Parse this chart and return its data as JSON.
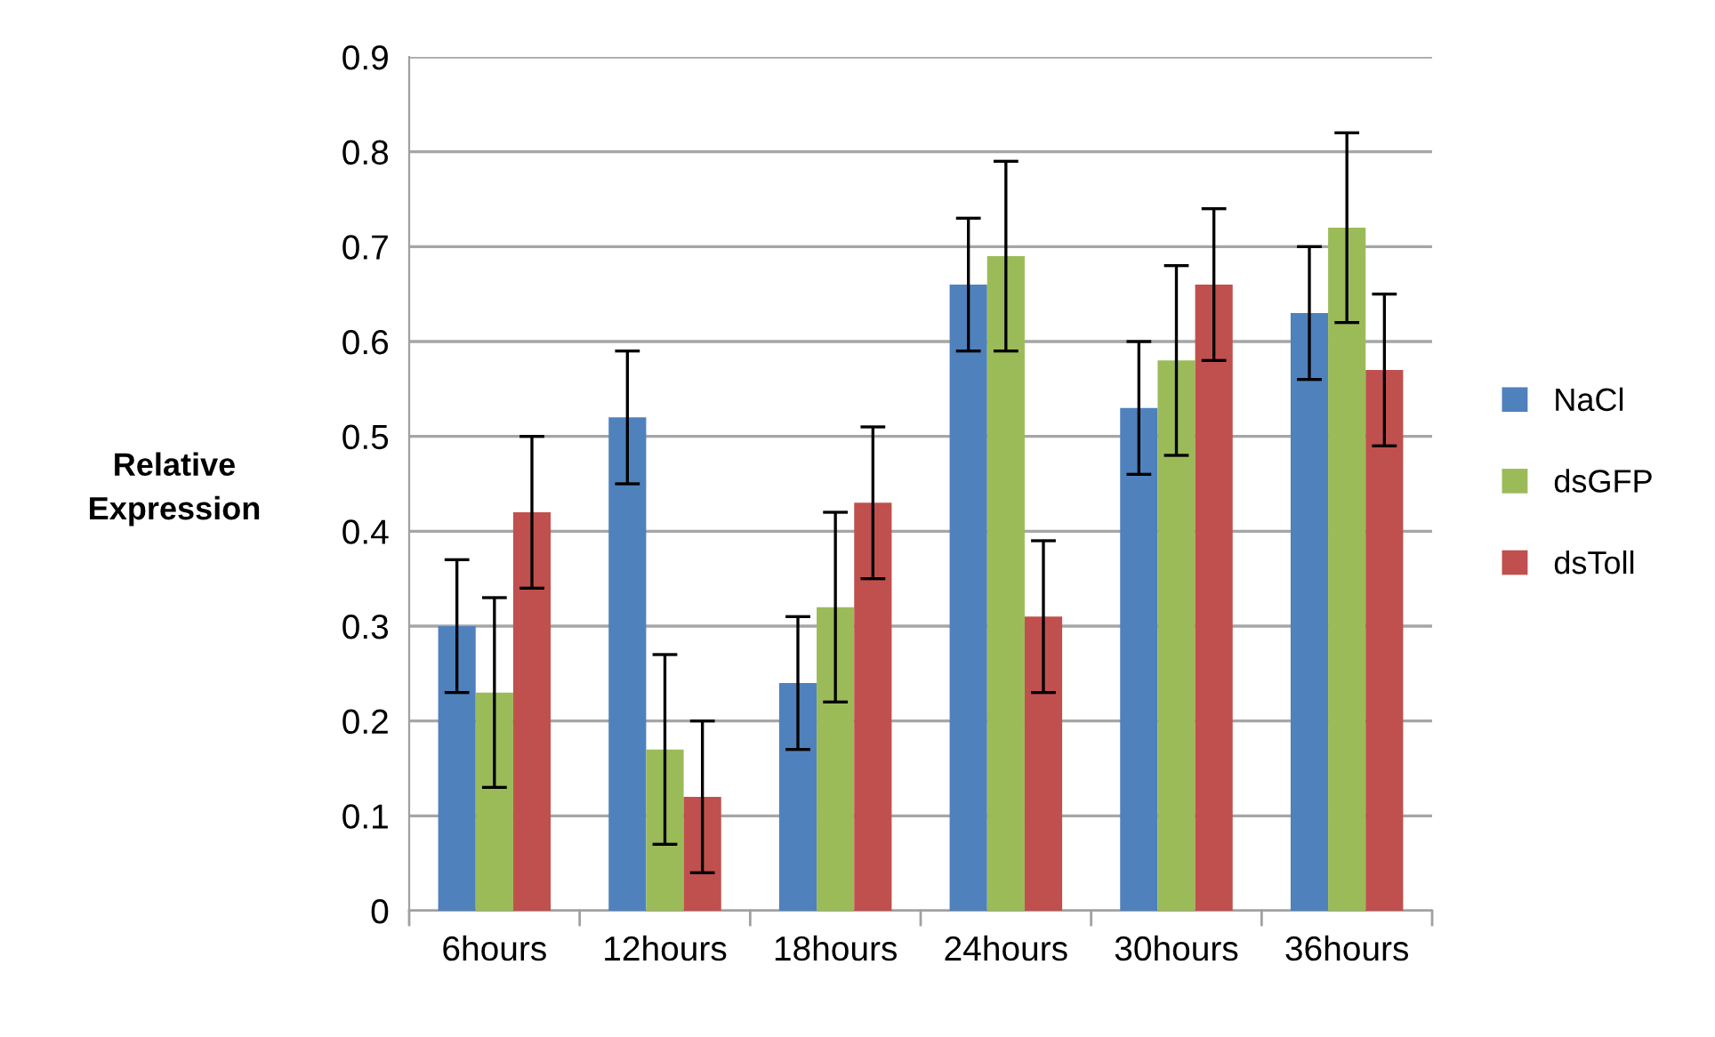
{
  "chart_data": {
    "type": "bar",
    "ylabel": "Relative\nExpression",
    "categories": [
      "6hours",
      "12hours",
      "18hours",
      "24hours",
      "30hours",
      "36hours"
    ],
    "series": [
      {
        "name": "NaCl",
        "color": "#4f81bd",
        "values": [
          0.3,
          0.52,
          0.24,
          0.66,
          0.53,
          0.63
        ],
        "errors": [
          0.07,
          0.07,
          0.07,
          0.07,
          0.07,
          0.07
        ]
      },
      {
        "name": "dsGFP",
        "color": "#9bbb59",
        "values": [
          0.23,
          0.17,
          0.32,
          0.69,
          0.58,
          0.72
        ],
        "errors": [
          0.1,
          0.1,
          0.1,
          0.1,
          0.1,
          0.1
        ]
      },
      {
        "name": "dsToll",
        "color": "#c0504d",
        "values": [
          0.42,
          0.12,
          0.43,
          0.31,
          0.66,
          0.57
        ],
        "errors": [
          0.08,
          0.08,
          0.08,
          0.08,
          0.08,
          0.08
        ]
      }
    ],
    "ylim": [
      0,
      0.9
    ],
    "yticks": [
      0,
      0.1,
      0.2,
      0.3,
      0.4,
      0.5,
      0.6,
      0.7,
      0.8,
      0.9
    ],
    "grid": "y",
    "legend": "right"
  }
}
